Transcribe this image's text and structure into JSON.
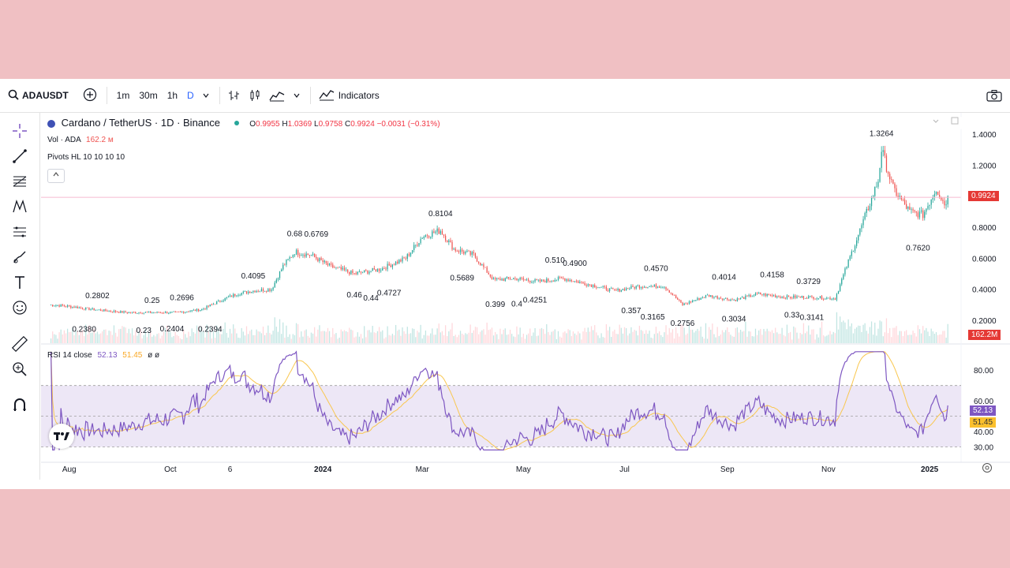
{
  "toolbar": {
    "symbol": "ADAUSDT",
    "intervals": [
      "1m",
      "30m",
      "1h",
      "D"
    ],
    "active_interval": "D",
    "indicators_label": "Indicators"
  },
  "legend": {
    "title": "Cardano / TetherUS · 1D · Binance",
    "o_label": "O",
    "o": "0.9955",
    "h_label": "H",
    "h": "1.0369",
    "l_label": "L",
    "l": "0.9758",
    "c_label": "C",
    "c": "0.9924",
    "change": "−0.0031 (−0.31%)",
    "vol_label": "Vol · ADA",
    "vol_value": "162.2 м",
    "pivots_label": "Pivots HL 10 10 10 10",
    "rsi_label": "RSI 14 close",
    "rsi_value": "52.13",
    "rsi_ma_value": "51.45",
    "rsi_extra": "ø ø"
  },
  "price_tag": "0.9924",
  "volume_tag": "162.2M",
  "rsi_tag": "52.13",
  "rsi_ma_tag": "51.45",
  "colors": {
    "up": "#26a69a",
    "down": "#ef5350",
    "rsi_line": "#7e57c2",
    "rsi_ma": "#f9c74f",
    "rsi_band": "#ede7f6",
    "price_tag_bg": "#e53935",
    "rsi_tag_bg": "#7e57c2",
    "rsi_ma_tag_bg": "#fbc02d"
  },
  "icons": [
    "search-icon",
    "plus-circle-icon",
    "candles-icon",
    "indicators-icon",
    "camera-icon",
    "crosshair-icon",
    "trendline-icon",
    "fib-icon",
    "pattern-icon",
    "measure-icon",
    "brush-icon",
    "text-icon",
    "emoji-icon",
    "ruler-icon",
    "zoom-in-icon",
    "magnet-icon",
    "tradingview-logo"
  ],
  "chart_data": {
    "type": "candlestick",
    "price_axis": [
      "1.4000",
      "1.2000",
      "0.8000",
      "0.6000",
      "0.4000",
      "0.2000"
    ],
    "rsi_axis": [
      "80.00",
      "60.00",
      "40.00",
      "30.00"
    ],
    "time_axis": [
      "Aug",
      "Oct",
      "6",
      "2024",
      "Mar",
      "May",
      "Jul",
      "Sep",
      "Nov",
      "2025"
    ],
    "price_close_path": [
      [
        "2023-07-20",
        0.3
      ],
      [
        "2023-08-01",
        0.29
      ],
      [
        "2023-08-15",
        0.27
      ],
      [
        "2023-08-25",
        0.26
      ],
      [
        "2023-09-05",
        0.25
      ],
      [
        "2023-09-20",
        0.25
      ],
      [
        "2023-10-05",
        0.25
      ],
      [
        "2023-10-20",
        0.27
      ],
      [
        "2023-11-01",
        0.33
      ],
      [
        "2023-11-10",
        0.37
      ],
      [
        "2023-11-20",
        0.39
      ],
      [
        "2023-12-01",
        0.4
      ],
      [
        "2023-12-08",
        0.55
      ],
      [
        "2023-12-15",
        0.64
      ],
      [
        "2023-12-25",
        0.62
      ],
      [
        "2024-01-05",
        0.55
      ],
      [
        "2024-01-20",
        0.5
      ],
      [
        "2024-02-05",
        0.53
      ],
      [
        "2024-02-20",
        0.6
      ],
      [
        "2024-03-01",
        0.74
      ],
      [
        "2024-03-12",
        0.78
      ],
      [
        "2024-03-20",
        0.66
      ],
      [
        "2024-04-01",
        0.62
      ],
      [
        "2024-04-13",
        0.46
      ],
      [
        "2024-04-25",
        0.47
      ],
      [
        "2024-05-10",
        0.45
      ],
      [
        "2024-05-25",
        0.47
      ],
      [
        "2024-06-10",
        0.43
      ],
      [
        "2024-06-25",
        0.39
      ],
      [
        "2024-07-10",
        0.42
      ],
      [
        "2024-07-25",
        0.42
      ],
      [
        "2024-08-05",
        0.3
      ],
      [
        "2024-08-20",
        0.36
      ],
      [
        "2024-09-05",
        0.33
      ],
      [
        "2024-09-20",
        0.37
      ],
      [
        "2024-10-05",
        0.35
      ],
      [
        "2024-10-20",
        0.35
      ],
      [
        "2024-11-05",
        0.34
      ],
      [
        "2024-11-12",
        0.55
      ],
      [
        "2024-11-20",
        0.78
      ],
      [
        "2024-12-01",
        1.1
      ],
      [
        "2024-12-03",
        1.3
      ],
      [
        "2024-12-10",
        1.05
      ],
      [
        "2024-12-20",
        0.9
      ],
      [
        "2024-12-28",
        0.88
      ],
      [
        "2025-01-05",
        1.05
      ],
      [
        "2025-01-10",
        0.95
      ],
      [
        "2025-01-12",
        0.99
      ]
    ],
    "pivot_highs": [
      "0.2802",
      "0.25",
      "0.2696",
      "0.4095",
      "0.68",
      "0.6769",
      "0.8104",
      "0.510",
      "0.4900",
      "0.4570",
      "0.4014",
      "0.4158",
      "0.3729",
      "1.3264"
    ],
    "pivot_lows": [
      "0.2380",
      "0.23",
      "0.2404",
      "0.2394",
      "0.46",
      "0.44",
      "0.4727",
      "0.5689",
      "0.399",
      "0.4",
      "0.4251",
      "0.357",
      "0.3165",
      "0.2756",
      "0.3034",
      "0.33",
      "0.3141",
      "0.7620"
    ],
    "last_close": 0.9924,
    "volume_last": "162.2M",
    "rsi_last": 52.13,
    "rsi_ma_last": 51.45,
    "rsi_bands": [
      70,
      30
    ],
    "rsi_midline": 50,
    "grid": false
  }
}
